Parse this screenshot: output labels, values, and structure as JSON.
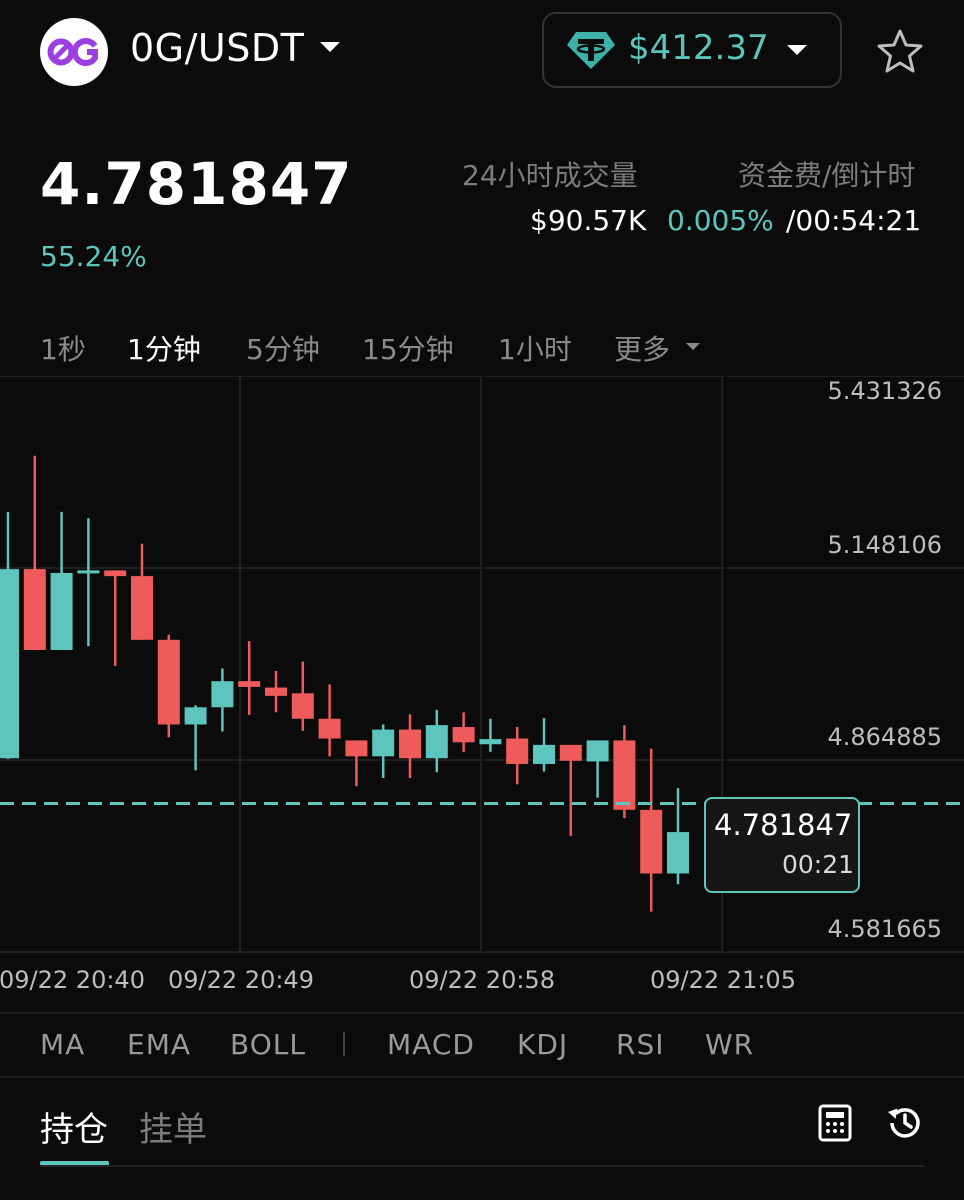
{
  "header": {
    "logo_text": "0G",
    "pair": "0G/USDT",
    "balance": "$412.37",
    "coin_icon": "tether-icon",
    "favorite_icon": "star-icon"
  },
  "ticker": {
    "last_price": "4.781847",
    "change_pct": "55.24%",
    "volume_label": "24小时成交量",
    "volume_value": "$90.57K",
    "funding_label": "资金费/倒计时",
    "funding_rate": "0.005%",
    "countdown": "/00:54:21"
  },
  "intervals": [
    {
      "label": "1秒",
      "active": false
    },
    {
      "label": "1分钟",
      "active": true
    },
    {
      "label": "5分钟",
      "active": false
    },
    {
      "label": "15分钟",
      "active": false
    },
    {
      "label": "1小时",
      "active": false
    },
    {
      "label": "更多",
      "active": false
    }
  ],
  "chart_data": {
    "type": "candlestick",
    "y_ticks": [
      "5.431326",
      "5.148106",
      "4.864885",
      "4.581665"
    ],
    "ylim": [
      4.55,
      5.44
    ],
    "x_ticks": [
      "09/22 20:40",
      "09/22 20:49",
      "09/22 20:58",
      "09/22 21:05"
    ],
    "last_price_line": 4.781847,
    "price_tag": {
      "price": "4.781847",
      "countdown": "00:21"
    },
    "colors": {
      "up": "#5ec4be",
      "down": "#ef5b5b"
    },
    "candles": [
      {
        "o": 4.853,
        "h": 5.24,
        "l": 4.852,
        "c": 5.15
      },
      {
        "o": 5.15,
        "h": 5.328,
        "l": 5.023,
        "c": 5.023
      },
      {
        "o": 5.023,
        "h": 5.24,
        "l": 5.023,
        "c": 5.144
      },
      {
        "o": 5.148,
        "h": 5.23,
        "l": 5.029,
        "c": 5.148
      },
      {
        "o": 5.148,
        "h": 5.148,
        "l": 4.998,
        "c": 5.139
      },
      {
        "o": 5.139,
        "h": 5.19,
        "l": 5.039,
        "c": 5.039
      },
      {
        "o": 5.039,
        "h": 5.047,
        "l": 4.886,
        "c": 4.906
      },
      {
        "o": 4.906,
        "h": 4.936,
        "l": 4.834,
        "c": 4.933
      },
      {
        "o": 4.933,
        "h": 4.994,
        "l": 4.895,
        "c": 4.974
      },
      {
        "o": 4.974,
        "h": 5.037,
        "l": 4.921,
        "c": 4.965
      },
      {
        "o": 4.964,
        "h": 4.99,
        "l": 4.925,
        "c": 4.951
      },
      {
        "o": 4.955,
        "h": 5.005,
        "l": 4.896,
        "c": 4.915
      },
      {
        "o": 4.915,
        "h": 4.969,
        "l": 4.856,
        "c": 4.884
      },
      {
        "o": 4.881,
        "h": 4.881,
        "l": 4.809,
        "c": 4.856
      },
      {
        "o": 4.856,
        "h": 4.906,
        "l": 4.822,
        "c": 4.898
      },
      {
        "o": 4.898,
        "h": 4.922,
        "l": 4.822,
        "c": 4.853
      },
      {
        "o": 4.853,
        "h": 4.929,
        "l": 4.831,
        "c": 4.905
      },
      {
        "o": 4.902,
        "h": 4.925,
        "l": 4.863,
        "c": 4.878
      },
      {
        "o": 4.875,
        "h": 4.915,
        "l": 4.863,
        "c": 4.883
      },
      {
        "o": 4.884,
        "h": 4.902,
        "l": 4.812,
        "c": 4.844
      },
      {
        "o": 4.844,
        "h": 4.916,
        "l": 4.832,
        "c": 4.874
      },
      {
        "o": 4.874,
        "h": 4.874,
        "l": 4.731,
        "c": 4.849
      },
      {
        "o": 4.848,
        "h": 4.879,
        "l": 4.791,
        "c": 4.881
      },
      {
        "o": 4.881,
        "h": 4.905,
        "l": 4.759,
        "c": 4.772
      },
      {
        "o": 4.772,
        "h": 4.868,
        "l": 4.612,
        "c": 4.672
      },
      {
        "o": 4.672,
        "h": 4.806,
        "l": 4.655,
        "c": 4.737
      }
    ]
  },
  "indicators": [
    "MA",
    "EMA",
    "BOLL",
    "MACD",
    "KDJ",
    "RSI",
    "WR"
  ],
  "bottom_tabs": {
    "positions": "持仓",
    "orders": "挂单",
    "calc_icon": "calculator-icon",
    "history_icon": "history-icon"
  }
}
